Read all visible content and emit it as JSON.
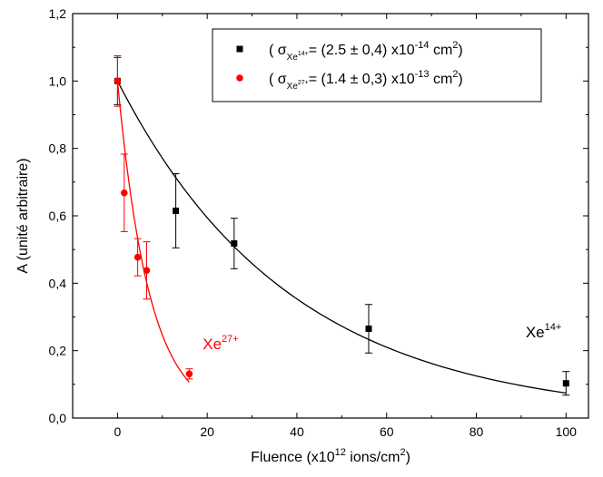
{
  "chart_data": {
    "type": "scatter",
    "xlabel": {
      "main": "Fluence (x10",
      "sup": "12",
      "mid": " ions/cm",
      "sup2": "2",
      "end": ")"
    },
    "ylabel": "A (unité arbitraire)",
    "xlim": [
      -10,
      105
    ],
    "ylim": [
      0,
      1.2
    ],
    "x_ticks": [
      0,
      20,
      40,
      60,
      80,
      100
    ],
    "x_tick_labels": [
      "0",
      "20",
      "40",
      "60",
      "80",
      "100"
    ],
    "y_ticks": [
      0,
      0.2,
      0.4,
      0.6,
      0.8,
      1.0,
      1.2
    ],
    "y_tick_labels": [
      "0,0",
      "0,2",
      "0,4",
      "0,6",
      "0,8",
      "1,0",
      "1,2"
    ],
    "grid": false,
    "legend_position": "top-right",
    "series": [
      {
        "marker": "square",
        "color": "#000000",
        "legend": {
          "open": "( σ",
          "sub": "Xe",
          "subsup": "14+",
          "mid": "= (2.5 ± 0,4) x10",
          "sup": "-14",
          "unit": " cm",
          "unitsup": "2",
          "close": ")"
        },
        "x": [
          0,
          13,
          26,
          56,
          100
        ],
        "y": [
          1.0,
          0.615,
          0.518,
          0.265,
          0.103
        ],
        "err": [
          0.07,
          0.11,
          0.075,
          0.072,
          0.035
        ],
        "fit": {
          "model": "exp",
          "a": 1.0,
          "k": 0.026
        },
        "annotation": {
          "text": "Xe",
          "sup": "14+",
          "x": 91,
          "y": 0.24
        }
      },
      {
        "marker": "circle",
        "color": "#ff0000",
        "legend": {
          "open": "( σ",
          "sub": "Xe",
          "subsup": "27+",
          "mid": "= (1.4 ± 0,3) x10",
          "sup": "-13",
          "unit": " cm",
          "unitsup": "2",
          "close": ")"
        },
        "x": [
          0,
          1.5,
          4.5,
          6.5,
          16
        ],
        "y": [
          1.0,
          0.668,
          0.477,
          0.438,
          0.131
        ],
        "err": [
          0.075,
          0.115,
          0.055,
          0.085,
          0.015
        ],
        "fit": {
          "model": "exp",
          "a": 1.0,
          "k": 0.14,
          "x_max": 16
        },
        "annotation": {
          "text": "Xe",
          "sup": "27+",
          "x": 19,
          "y": 0.205
        }
      }
    ]
  }
}
